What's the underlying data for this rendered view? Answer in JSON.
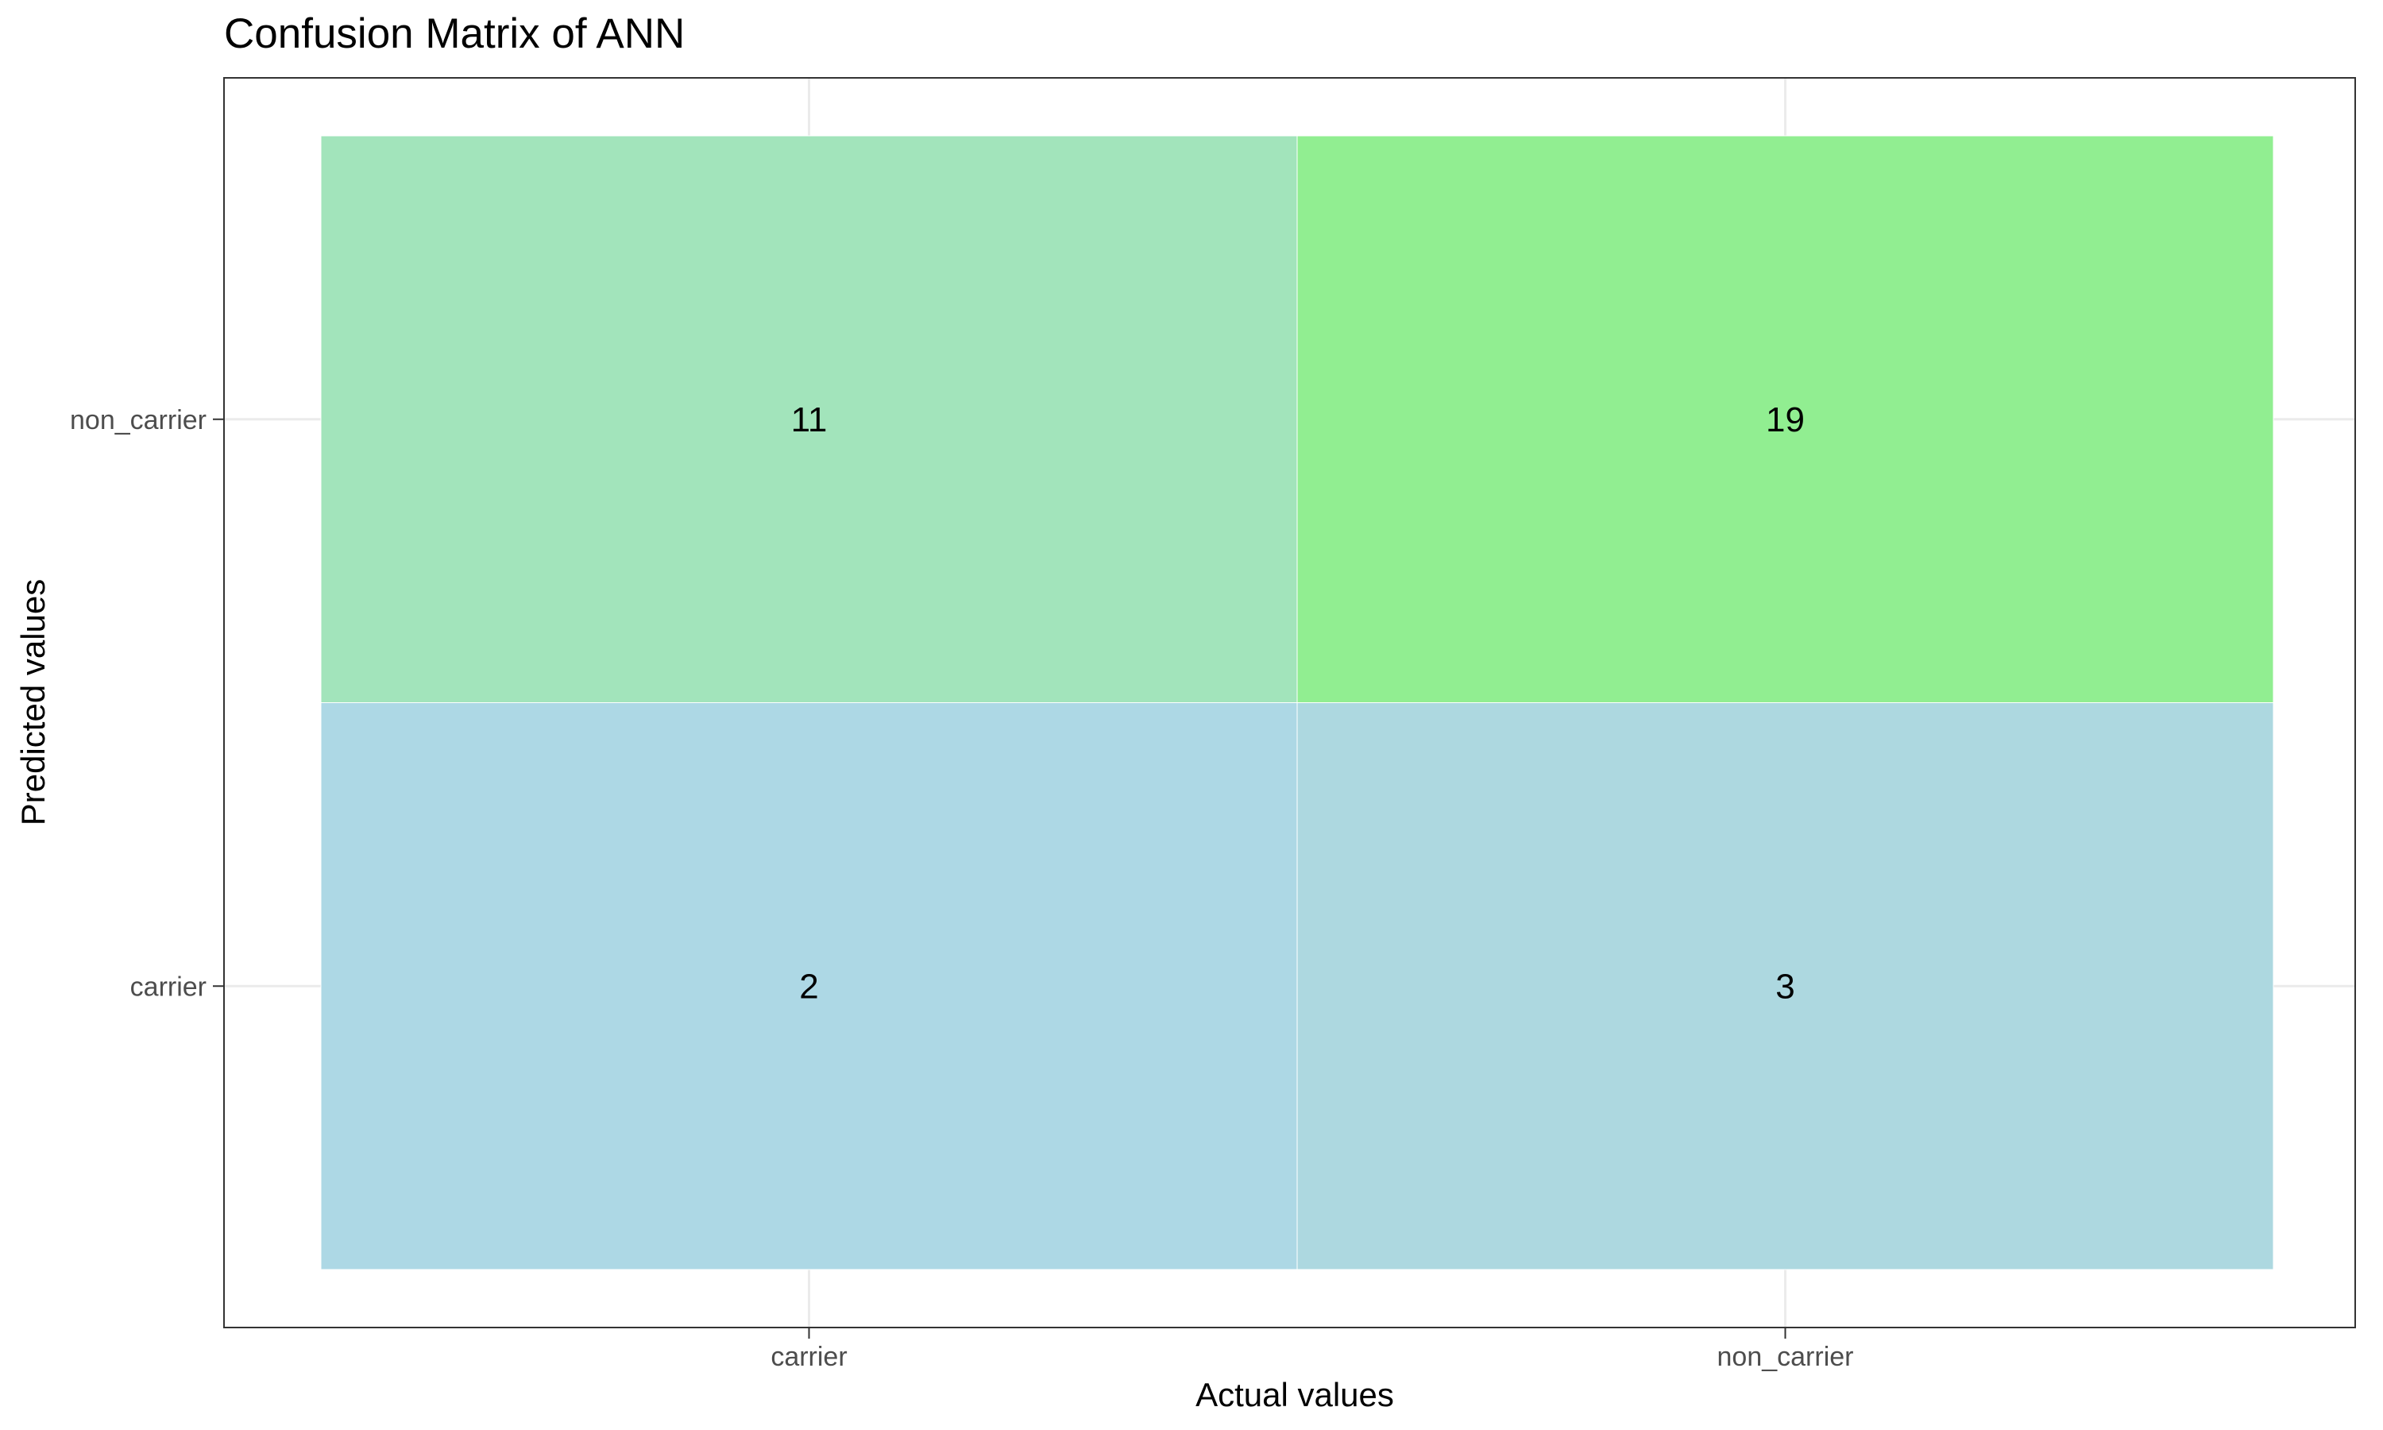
{
  "chart_data": {
    "type": "heatmap",
    "title": "Confusion Matrix of ANN",
    "xlabel": "Actual values",
    "ylabel": "Predicted values",
    "x_categories": [
      "carrier",
      "non_carrier"
    ],
    "y_categories": [
      "carrier",
      "non_carrier"
    ],
    "cells": [
      {
        "actual": "carrier",
        "predicted": "non_carrier",
        "value": 11,
        "color": "#a2e4bb"
      },
      {
        "actual": "non_carrier",
        "predicted": "non_carrier",
        "value": 19,
        "color": "#91ee91"
      },
      {
        "actual": "carrier",
        "predicted": "carrier",
        "value": 2,
        "color": "#add8e5"
      },
      {
        "actual": "non_carrier",
        "predicted": "carrier",
        "value": 3,
        "color": "#add8e0"
      }
    ],
    "grid": true,
    "legend": "none",
    "colors": {
      "panel_border": "#333333",
      "grid": "#ebebeb",
      "tick_text": "#4d4d4d",
      "text": "#000000"
    }
  }
}
